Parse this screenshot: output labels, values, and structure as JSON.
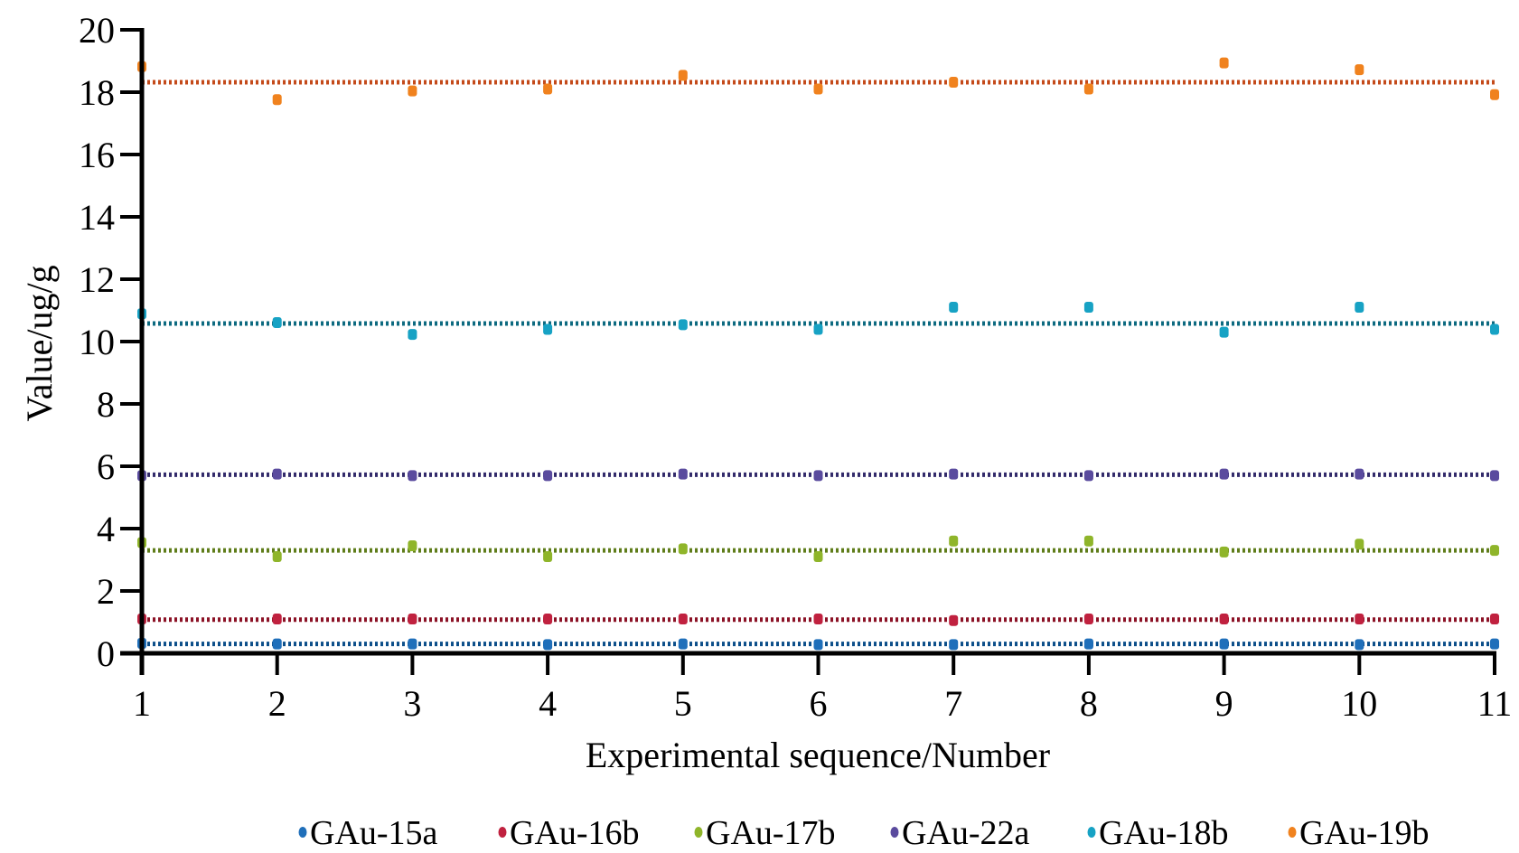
{
  "chart_data": {
    "type": "scatter",
    "title": "",
    "xlabel": "Experimental sequence/Number",
    "ylabel": "Value/ug/g",
    "xlim": [
      1,
      11
    ],
    "ylim": [
      0,
      20
    ],
    "x_ticks": [
      "1",
      "2",
      "3",
      "4",
      "5",
      "6",
      "7",
      "8",
      "9",
      "10",
      "11"
    ],
    "y_ticks": [
      "0",
      "2",
      "4",
      "6",
      "8",
      "10",
      "12",
      "14",
      "16",
      "18",
      "20"
    ],
    "grid": false,
    "legend_position": "bottom",
    "x": [
      1,
      2,
      3,
      4,
      5,
      6,
      7,
      8,
      9,
      10,
      11
    ],
    "series": [
      {
        "name": "GAu-15a",
        "color": "#1f6fba",
        "trend_color": "#0d4f8a",
        "trend": 0.3,
        "values": [
          0.32,
          0.3,
          0.3,
          0.28,
          0.3,
          0.28,
          0.28,
          0.3,
          0.3,
          0.28,
          0.3
        ]
      },
      {
        "name": "GAu-16b",
        "color": "#c0213f",
        "trend_color": "#8c1226",
        "trend": 1.08,
        "values": [
          1.1,
          1.1,
          1.1,
          1.1,
          1.1,
          1.1,
          1.05,
          1.1,
          1.1,
          1.1,
          1.1
        ]
      },
      {
        "name": "GAu-17b",
        "color": "#8fb52a",
        "trend_color": "#5f7d1a",
        "trend": 3.3,
        "values": [
          3.55,
          3.1,
          3.45,
          3.1,
          3.35,
          3.1,
          3.6,
          3.6,
          3.25,
          3.5,
          3.3
        ]
      },
      {
        "name": "GAu-22a",
        "color": "#5a4b9e",
        "trend_color": "#332b6b",
        "trend": 5.73,
        "values": [
          5.7,
          5.75,
          5.7,
          5.7,
          5.75,
          5.7,
          5.75,
          5.7,
          5.75,
          5.75,
          5.7
        ]
      },
      {
        "name": "GAu-18b",
        "color": "#17a2c4",
        "trend_color": "#0d6a80",
        "trend": 10.58,
        "values": [
          10.89,
          10.61,
          10.23,
          10.39,
          10.54,
          10.39,
          11.1,
          11.1,
          10.3,
          11.1,
          10.39
        ]
      },
      {
        "name": "GAu-19b",
        "color": "#f0821e",
        "trend_color": "#c44a1a",
        "trend": 18.32,
        "values": [
          18.82,
          17.76,
          18.04,
          18.1,
          18.54,
          18.1,
          18.32,
          18.1,
          18.94,
          18.72,
          17.92
        ]
      }
    ]
  }
}
